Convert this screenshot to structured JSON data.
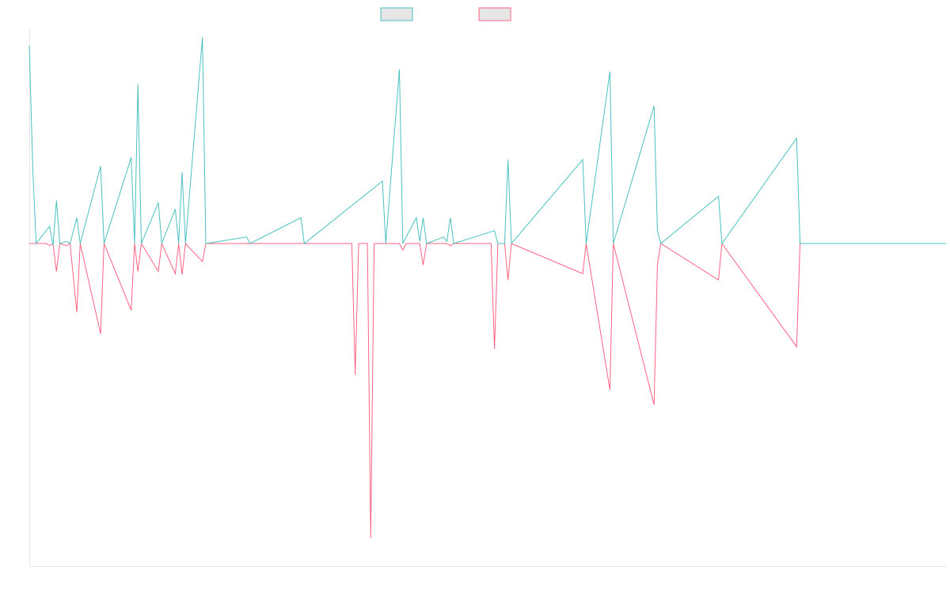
{
  "chart_data": {
    "type": "line",
    "title": "",
    "xlabel": "",
    "ylabel": "",
    "grid": false,
    "legend_position": "top-center",
    "colors": {
      "series_a": "#4bc0c0",
      "series_b": "#ff6384",
      "legend_fill": "#e6e6e6",
      "axis": "#e5e5e5"
    },
    "ylim": [
      -750,
      500
    ],
    "series": [
      {
        "name": "",
        "points": [
          [
            0,
            460
          ],
          [
            7,
            180
          ],
          [
            14,
            0
          ],
          [
            42,
            40
          ],
          [
            49,
            -5
          ],
          [
            56,
            100
          ],
          [
            63,
            0
          ],
          [
            77,
            5
          ],
          [
            84,
            0
          ],
          [
            98,
            60
          ],
          [
            105,
            0
          ],
          [
            147,
            180
          ],
          [
            154,
            0
          ],
          [
            210,
            200
          ],
          [
            217,
            0
          ],
          [
            224,
            370
          ],
          [
            231,
            0
          ],
          [
            266,
            95
          ],
          [
            273,
            0
          ],
          [
            301,
            80
          ],
          [
            308,
            0
          ],
          [
            315,
            165
          ],
          [
            322,
            0
          ],
          [
            357,
            480
          ],
          [
            364,
            0
          ],
          [
            448,
            15
          ],
          [
            455,
            0
          ],
          [
            560,
            60
          ],
          [
            567,
            0
          ],
          [
            728,
            145
          ],
          [
            735,
            0
          ],
          [
            763,
            405
          ],
          [
            770,
            0
          ],
          [
            798,
            60
          ],
          [
            805,
            5
          ],
          [
            812,
            60
          ],
          [
            819,
            0
          ],
          [
            854,
            15
          ],
          [
            861,
            5
          ],
          [
            868,
            60
          ],
          [
            875,
            0
          ],
          [
            959,
            30
          ],
          [
            966,
            0
          ],
          [
            980,
            0
          ],
          [
            987,
            195
          ],
          [
            994,
            0
          ],
          [
            1141,
            195
          ],
          [
            1148,
            0
          ],
          [
            1197,
            400
          ],
          [
            1204,
            0
          ],
          [
            1288,
            320
          ],
          [
            1295,
            30
          ],
          [
            1302,
            0
          ],
          [
            1421,
            110
          ],
          [
            1428,
            0
          ],
          [
            1582,
            245
          ],
          [
            1589,
            0
          ],
          [
            1890,
            0
          ]
        ]
      },
      {
        "name": "",
        "points": [
          [
            0,
            0
          ],
          [
            35,
            0
          ],
          [
            42,
            -5
          ],
          [
            49,
            0
          ],
          [
            56,
            -65
          ],
          [
            63,
            0
          ],
          [
            77,
            -5
          ],
          [
            84,
            0
          ],
          [
            98,
            -160
          ],
          [
            105,
            0
          ],
          [
            147,
            -210
          ],
          [
            154,
            0
          ],
          [
            210,
            -155
          ],
          [
            217,
            0
          ],
          [
            224,
            -65
          ],
          [
            231,
            0
          ],
          [
            266,
            -65
          ],
          [
            273,
            0
          ],
          [
            301,
            -70
          ],
          [
            308,
            0
          ],
          [
            315,
            -72
          ],
          [
            322,
            0
          ],
          [
            357,
            -42
          ],
          [
            364,
            0
          ],
          [
            665,
            0
          ],
          [
            672,
            -305
          ],
          [
            679,
            0
          ],
          [
            697,
            0
          ],
          [
            704,
            -685
          ],
          [
            711,
            0
          ],
          [
            763,
            0
          ],
          [
            770,
            -15
          ],
          [
            777,
            0
          ],
          [
            805,
            0
          ],
          [
            812,
            -50
          ],
          [
            819,
            0
          ],
          [
            861,
            0
          ],
          [
            868,
            -5
          ],
          [
            875,
            0
          ],
          [
            952,
            0
          ],
          [
            959,
            -245
          ],
          [
            966,
            0
          ],
          [
            980,
            0
          ],
          [
            987,
            -85
          ],
          [
            994,
            0
          ],
          [
            1141,
            -70
          ],
          [
            1148,
            0
          ],
          [
            1197,
            -340
          ],
          [
            1204,
            0
          ],
          [
            1288,
            -375
          ],
          [
            1295,
            -50
          ],
          [
            1302,
            0
          ],
          [
            1421,
            -85
          ],
          [
            1428,
            0
          ],
          [
            1582,
            -240
          ],
          [
            1589,
            0
          ],
          [
            1890,
            0
          ]
        ]
      }
    ]
  }
}
